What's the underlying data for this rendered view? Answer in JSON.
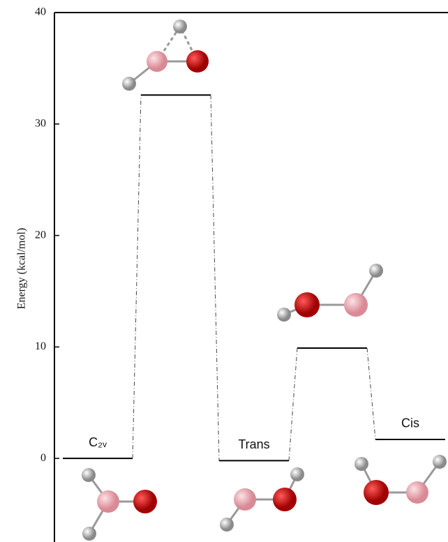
{
  "chart_data": {
    "type": "energy-diagram",
    "y_label": "Energy (kcal/mol)",
    "categories": [
      "C₂ᵥ",
      null,
      "Trans",
      null,
      "Cis"
    ],
    "values": [
      0,
      32.6,
      -0.2,
      9.9,
      1.7
    ],
    "ylim": [
      -7.5,
      40
    ],
    "yticks": [
      0,
      10,
      20,
      30,
      40
    ]
  }
}
